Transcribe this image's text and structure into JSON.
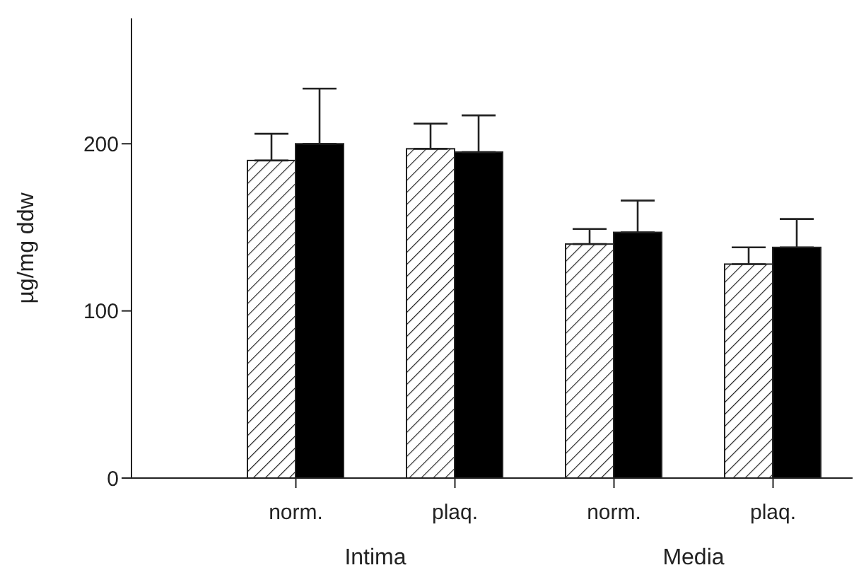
{
  "chart_data": {
    "type": "bar",
    "ylabel": "µg/mg ddw",
    "categories": [
      "norm.",
      "plaq.",
      "norm.",
      "plaq."
    ],
    "annotations": [
      "Intima",
      "Media"
    ],
    "series": [
      {
        "color": "#ffffff",
        "values": [
          190,
          197,
          140,
          128
        ],
        "errors": [
          [
            190,
            206
          ],
          [
            197,
            212
          ],
          [
            140,
            149
          ],
          [
            128,
            138
          ]
        ]
      },
      {
        "color": "#000000",
        "values": [
          200,
          195,
          147,
          138
        ],
        "errors": [
          [
            200,
            233
          ],
          [
            195,
            217
          ],
          [
            147,
            166
          ],
          [
            138,
            155
          ]
        ]
      }
    ],
    "ylim": [
      0,
      275
    ],
    "yticks": [
      0,
      100,
      200
    ],
    "grid": false,
    "legend": false
  }
}
